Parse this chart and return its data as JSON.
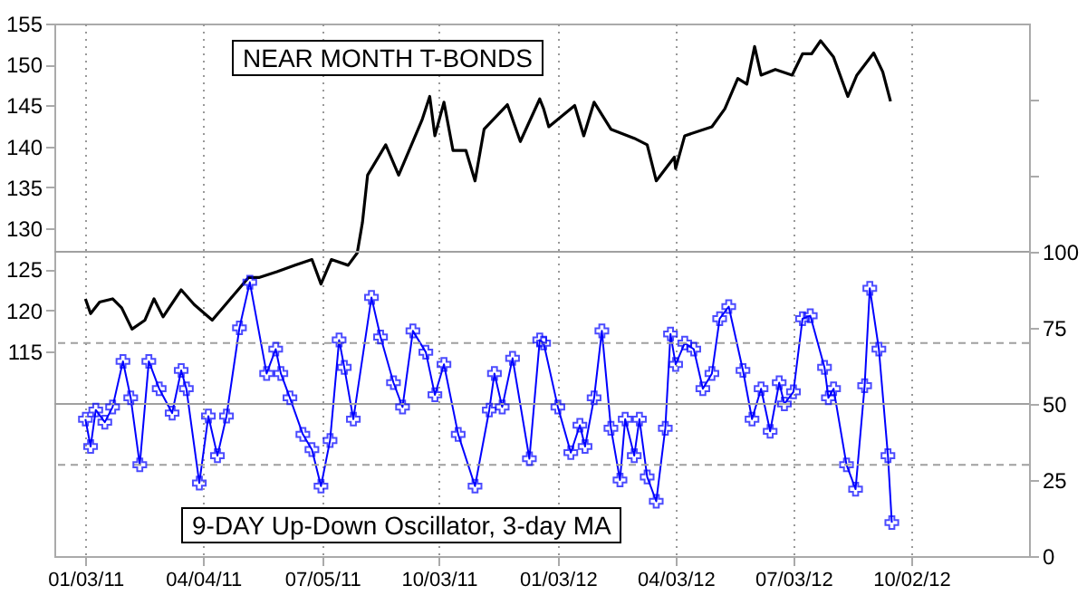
{
  "chart_data": {
    "type": "line",
    "xlim": [
      "2010-12-10",
      "2013-01-01"
    ],
    "xticks": [
      {
        "value": "2011-01-03",
        "label": "01/03/11"
      },
      {
        "value": "2011-04-04",
        "label": "04/04/11"
      },
      {
        "value": "2011-07-05",
        "label": "07/05/11"
      },
      {
        "value": "2011-10-03",
        "label": "10/03/11"
      },
      {
        "value": "2012-01-03",
        "label": "01/03/12"
      },
      {
        "value": "2012-04-03",
        "label": "04/03/12"
      },
      {
        "value": "2012-07-03",
        "label": "07/03/12"
      },
      {
        "value": "2012-10-02",
        "label": "10/02/12"
      }
    ],
    "ylim": [
      90,
      155
    ],
    "yticks": [
      115,
      120,
      125,
      130,
      135,
      140,
      145,
      150,
      155
    ],
    "y2lim": [
      0,
      175
    ],
    "y2ticks": [
      0,
      25,
      50,
      75,
      100,
      {
        "value": 125,
        "label": null
      },
      {
        "value": 150,
        "label": null
      }
    ],
    "grid": "x",
    "ref_lines": [
      {
        "axis": "y2",
        "value": 100,
        "color": "#a0a0a0",
        "line_style": "solid"
      },
      {
        "axis": "y2",
        "value": 50,
        "color": "#a0a0a0",
        "line_style": "solid"
      },
      {
        "axis": "y2",
        "value": 70,
        "color": "#a0a0a0",
        "line_style": "dashed"
      },
      {
        "axis": "y2",
        "value": 30,
        "color": "#a0a0a0",
        "line_style": "dashed"
      }
    ],
    "series": [
      {
        "name": "NEAR MONTH T-BONDS",
        "color": "#000000",
        "marker": "none",
        "axis": "y",
        "x": [
          "2011-01-03",
          "2011-01-07",
          "2011-01-14",
          "2011-01-24",
          "2011-01-31",
          "2011-02-08",
          "2011-02-18",
          "2011-02-25",
          "2011-03-04",
          "2011-03-18",
          "2011-03-28",
          "2011-04-11",
          "2011-04-25",
          "2011-05-09",
          "2011-05-17",
          "2011-05-31",
          "2011-06-14",
          "2011-06-27",
          "2011-07-04",
          "2011-07-12",
          "2011-07-25",
          "2011-08-01",
          "2011-08-05",
          "2011-08-09",
          "2011-08-23",
          "2011-09-02",
          "2011-09-20",
          "2011-09-26",
          "2011-09-30",
          "2011-10-07",
          "2011-10-14",
          "2011-10-24",
          "2011-10-31",
          "2011-11-07",
          "2011-11-25",
          "2011-12-05",
          "2011-12-20",
          "2011-12-23",
          "2011-12-27",
          "2012-01-16",
          "2012-01-23",
          "2012-01-31",
          "2012-02-13",
          "2012-03-02",
          "2012-03-12",
          "2012-03-19",
          "2012-04-02",
          "2012-04-03",
          "2012-04-10",
          "2012-05-01",
          "2012-05-11",
          "2012-05-21",
          "2012-05-28",
          "2012-06-03",
          "2012-06-08",
          "2012-06-19",
          "2012-07-02",
          "2012-07-10",
          "2012-07-17",
          "2012-07-24",
          "2012-08-03",
          "2012-08-14",
          "2012-08-21",
          "2012-09-03",
          "2012-09-10",
          "2012-09-16"
        ],
        "values": [
          121.4,
          119.6,
          121.0,
          121.4,
          120.3,
          117.7,
          118.8,
          121.4,
          119.2,
          122.5,
          120.7,
          118.8,
          121.4,
          124.0,
          124.0,
          124.7,
          125.5,
          126.2,
          123.2,
          126.2,
          125.5,
          127.0,
          130.7,
          136.5,
          140.2,
          136.5,
          143.2,
          146.1,
          141.3,
          145.4,
          139.5,
          139.5,
          135.8,
          142.1,
          145.1,
          140.6,
          145.8,
          144.6,
          142.4,
          145.0,
          141.3,
          145.4,
          142.1,
          141.0,
          140.2,
          135.8,
          138.7,
          137.3,
          141.3,
          142.4,
          144.6,
          148.3,
          147.6,
          152.2,
          148.7,
          149.4,
          148.7,
          151.3,
          151.3,
          152.9,
          150.9,
          146.1,
          148.7,
          151.4,
          149.1,
          145.5
        ]
      },
      {
        "name": "9-DAY Up-Down Oscillator, 3-day MA",
        "color": "#0000ff",
        "marker": "cross",
        "axis": "y2",
        "x": [
          "2011-01-03",
          "2011-01-07",
          "2011-01-11",
          "2011-01-18",
          "2011-01-24",
          "2011-02-01",
          "2011-02-07",
          "2011-02-14",
          "2011-02-21",
          "2011-03-01",
          "2011-03-11",
          "2011-03-18",
          "2011-03-22",
          "2011-04-01",
          "2011-04-08",
          "2011-04-15",
          "2011-04-22",
          "2011-05-02",
          "2011-05-10",
          "2011-05-23",
          "2011-05-30",
          "2011-06-03",
          "2011-06-10",
          "2011-06-20",
          "2011-06-27",
          "2011-07-04",
          "2011-07-11",
          "2011-07-18",
          "2011-07-22",
          "2011-07-29",
          "2011-08-12",
          "2011-08-19",
          "2011-08-29",
          "2011-09-05",
          "2011-09-13",
          "2011-09-23",
          "2011-09-30",
          "2011-10-07",
          "2011-10-18",
          "2011-10-31",
          "2011-11-11",
          "2011-11-15",
          "2011-11-21",
          "2011-11-29",
          "2011-12-12",
          "2011-12-20",
          "2011-12-23",
          "2012-01-03",
          "2012-01-13",
          "2012-01-20",
          "2012-01-24",
          "2012-01-31",
          "2012-02-06",
          "2012-02-13",
          "2012-02-20",
          "2012-02-24",
          "2012-03-02",
          "2012-03-06",
          "2012-03-12",
          "2012-03-19",
          "2012-03-26",
          "2012-03-30",
          "2012-04-03",
          "2012-04-10",
          "2012-04-17",
          "2012-04-24",
          "2012-05-01",
          "2012-05-07",
          "2012-05-14",
          "2012-05-25",
          "2012-06-01",
          "2012-06-08",
          "2012-06-15",
          "2012-06-22",
          "2012-06-26",
          "2012-07-03",
          "2012-07-10",
          "2012-07-16",
          "2012-07-27",
          "2012-07-30",
          "2012-08-03",
          "2012-08-13",
          "2012-08-20",
          "2012-08-27",
          "2012-08-31",
          "2012-09-07",
          "2012-09-14",
          "2012-09-17"
        ],
        "values": [
          45,
          36,
          48,
          44,
          49,
          64,
          52,
          30,
          64,
          55,
          47,
          61,
          55,
          24,
          46,
          33,
          46,
          75,
          90,
          60,
          68,
          60,
          52,
          40,
          35,
          23,
          38,
          71,
          62,
          45,
          85,
          72,
          57,
          49,
          74,
          67,
          53,
          63,
          40,
          23,
          48,
          60,
          49,
          65,
          32,
          71,
          70,
          49,
          34,
          43,
          36,
          52,
          74,
          42,
          25,
          45,
          33,
          45,
          26,
          18,
          42,
          73,
          63,
          70,
          68,
          55,
          60,
          78,
          82,
          61,
          45,
          55,
          41,
          57,
          50,
          54,
          78,
          79,
          62,
          52,
          55,
          30,
          22,
          56,
          88,
          68,
          33,
          11
        ]
      }
    ]
  }
}
